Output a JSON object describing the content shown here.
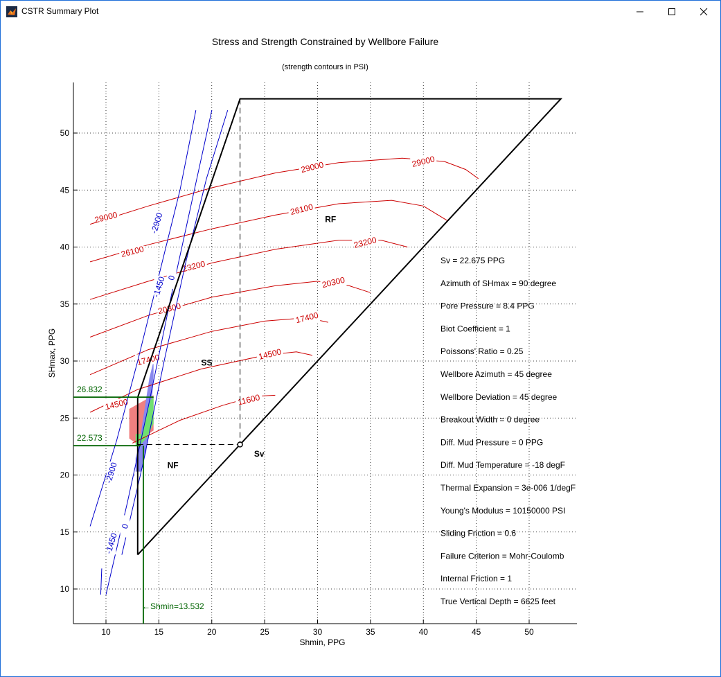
{
  "window": {
    "title": "CSTR Summary Plot"
  },
  "chart_data": {
    "type": "line",
    "title": "Stress and Strength Constrained by Wellbore Failure",
    "subtitle": "(strength contours in PSI)",
    "xlabel": "Shmin, PPG",
    "ylabel": "SHmax, PPG",
    "xlim": [
      7,
      55
    ],
    "ylim": [
      7,
      54
    ],
    "xticks": [
      10,
      15,
      20,
      25,
      30,
      35,
      40,
      45,
      50
    ],
    "yticks": [
      10,
      15,
      20,
      25,
      30,
      35,
      40,
      45,
      50
    ],
    "grid": true,
    "polygon": [
      [
        13,
        13
      ],
      [
        22.675,
        22.675
      ],
      [
        53,
        53
      ],
      [
        22.675,
        53
      ],
      [
        13,
        26.8
      ],
      [
        13,
        13
      ]
    ],
    "sv_lines": [
      [
        [
          22.675,
          53
        ],
        [
          22.675,
          22.675
        ]
      ],
      [
        [
          13,
          22.675
        ],
        [
          22.675,
          22.675
        ]
      ]
    ],
    "sv_point": [
      22.675,
      22.675
    ],
    "region_labels": [
      {
        "text": "RF",
        "x": 30.7,
        "y": 42.2
      },
      {
        "text": "SS",
        "x": 19.0,
        "y": 29.6
      },
      {
        "text": "NF",
        "x": 15.8,
        "y": 20.6
      },
      {
        "text": "Sv",
        "x": 24.0,
        "y": 21.6
      }
    ],
    "strength_contours": [
      {
        "label": "29000",
        "points": [
          [
            8.5,
            42.0
          ],
          [
            14,
            43.6
          ],
          [
            20,
            45.2
          ],
          [
            26,
            46.5
          ],
          [
            32,
            47.4
          ],
          [
            38,
            47.8
          ],
          [
            42,
            47.5
          ],
          [
            44,
            46.8
          ],
          [
            45.2,
            46.0
          ]
        ],
        "labels": [
          [
            10.0,
            42.6
          ],
          [
            29.5,
            47.0
          ],
          [
            40.0,
            47.5
          ]
        ]
      },
      {
        "label": "26100",
        "points": [
          [
            8.5,
            38.7
          ],
          [
            14,
            40.2
          ],
          [
            20,
            41.6
          ],
          [
            26,
            42.8
          ],
          [
            32,
            43.8
          ],
          [
            37,
            44.1
          ],
          [
            40,
            43.6
          ],
          [
            42.3,
            42.3
          ]
        ],
        "labels": [
          [
            12.5,
            39.6
          ],
          [
            28.5,
            43.3
          ]
        ]
      },
      {
        "label": "23200",
        "points": [
          [
            8.5,
            35.4
          ],
          [
            14,
            37.0
          ],
          [
            20,
            38.6
          ],
          [
            26,
            39.8
          ],
          [
            32,
            40.6
          ],
          [
            36,
            40.6
          ],
          [
            38.5,
            40.0
          ]
        ],
        "labels": [
          [
            18.3,
            38.3
          ],
          [
            34.5,
            40.4
          ]
        ]
      },
      {
        "label": "20300",
        "points": [
          [
            8.5,
            32.1
          ],
          [
            14,
            34.0
          ],
          [
            20,
            35.6
          ],
          [
            26,
            36.6
          ],
          [
            30,
            37.0
          ],
          [
            33,
            36.6
          ],
          [
            35,
            36.0
          ]
        ],
        "labels": [
          [
            16.0,
            34.6
          ],
          [
            31.5,
            36.9
          ]
        ]
      },
      {
        "label": "17400",
        "points": [
          [
            8.5,
            28.8
          ],
          [
            14,
            31.0
          ],
          [
            20,
            32.6
          ],
          [
            25,
            33.5
          ],
          [
            29,
            33.8
          ],
          [
            31,
            33.4
          ]
        ],
        "labels": [
          [
            14.0,
            30.1
          ],
          [
            29.0,
            33.8
          ]
        ]
      },
      {
        "label": "14500",
        "points": [
          [
            8.5,
            25.5
          ],
          [
            13,
            27.5
          ],
          [
            19,
            29.3
          ],
          [
            25,
            30.5
          ],
          [
            28,
            30.8
          ],
          [
            29.5,
            30.5
          ]
        ],
        "labels": [
          [
            11.0,
            26.2
          ],
          [
            25.5,
            30.6
          ]
        ]
      },
      {
        "label": "11600",
        "points": [
          [
            12.5,
            22.8
          ],
          [
            17,
            24.8
          ],
          [
            21,
            26.1
          ],
          [
            24,
            26.9
          ],
          [
            26,
            27.0
          ]
        ],
        "labels": [
          [
            23.5,
            26.6
          ]
        ]
      }
    ],
    "tensile_contours": [
      {
        "label": "-2900",
        "points": [
          [
            8.5,
            15.5
          ],
          [
            11,
            23.0
          ],
          [
            13,
            30.0
          ],
          [
            15,
            37.5
          ],
          [
            17,
            45.0
          ],
          [
            18.5,
            52.0
          ]
        ],
        "labels": [
          [
            10.5,
            20.2
          ],
          [
            14.8,
            42.1
          ]
        ]
      },
      {
        "label": "-1450",
        "points": [
          [
            10,
            9.5
          ],
          [
            12,
            17.5
          ],
          [
            14,
            26.0
          ],
          [
            16,
            35.0
          ],
          [
            18,
            43.5
          ],
          [
            20,
            52.0
          ]
        ],
        "labels": [
          [
            10.5,
            14.0
          ],
          [
            15.0,
            36.5
          ]
        ]
      },
      {
        "label": "0",
        "points": [
          [
            11.5,
            13.0
          ],
          [
            13.5,
            21.0
          ],
          [
            15.5,
            30.0
          ],
          [
            17.5,
            38.5
          ],
          [
            19.5,
            46.0
          ],
          [
            21.5,
            52.0
          ]
        ],
        "labels": [
          [
            11.8,
            15.5
          ],
          [
            16.2,
            37.3
          ]
        ]
      }
    ],
    "extra_blue_segments": [
      [
        [
          9.5,
          9.5
        ],
        [
          9.6,
          11.8
        ]
      ]
    ],
    "fill_regions": [
      {
        "color": "#f08080",
        "points": [
          [
            12.2,
            25.8
          ],
          [
            14.5,
            27.0
          ],
          [
            14.5,
            23.9
          ],
          [
            12.8,
            22.8
          ],
          [
            12.2,
            23.2
          ]
        ]
      },
      {
        "color": "#8888ee",
        "points": [
          [
            12.8,
            20.3
          ],
          [
            13.3,
            20.3
          ],
          [
            13.8,
            22.0
          ],
          [
            14.2,
            25.0
          ],
          [
            14.5,
            28.5
          ],
          [
            14.5,
            30.0
          ],
          [
            14.1,
            28.5
          ],
          [
            13.6,
            25.5
          ],
          [
            13.1,
            22.5
          ],
          [
            12.8,
            21.5
          ]
        ]
      },
      {
        "color": "#70e070",
        "points": [
          [
            12.8,
            23.6
          ],
          [
            13.4,
            23.6
          ],
          [
            14.2,
            26.6
          ],
          [
            14.5,
            26.8
          ],
          [
            14.5,
            24.5
          ],
          [
            13.8,
            23.2
          ],
          [
            13.2,
            22.6
          ],
          [
            12.8,
            22.6
          ]
        ]
      }
    ],
    "markers": {
      "shmax_high": {
        "label": "26.832",
        "value": 26.832
      },
      "shmax_low": {
        "label": "22.573",
        "value": 22.573
      },
      "shmin": {
        "label": "←Shmin=13.532",
        "value": 13.532
      }
    },
    "annotations": [
      "Sv = 22.675 PPG",
      "Azimuth of SHmax = 90 degree",
      "Pore Pressure = 8.4 PPG",
      "Biot Coefficient = 1",
      "Poissons' Ratio = 0.25",
      "Wellbore Azimuth = 45 degree",
      "Wellbore Deviation = 45 degree",
      "Breakout Width = 0 degree",
      "Diff. Mud Pressure = 0 PPG",
      "Diff. Mud Temperature = -18 degF",
      "Thermal Expansion = 3e-006 1/degF",
      "Young's Modulus = 10150000 PSI",
      "Sliding Friction = 0.6",
      "Failure Criterion = Mohr-Coulomb",
      "Internal Friction = 1",
      "True Vertical Depth = 6625 feet"
    ],
    "colors": {
      "strength": "#cc0000",
      "tensile": "#0000cc",
      "marker": "#006400",
      "polygon": "#000000"
    }
  }
}
